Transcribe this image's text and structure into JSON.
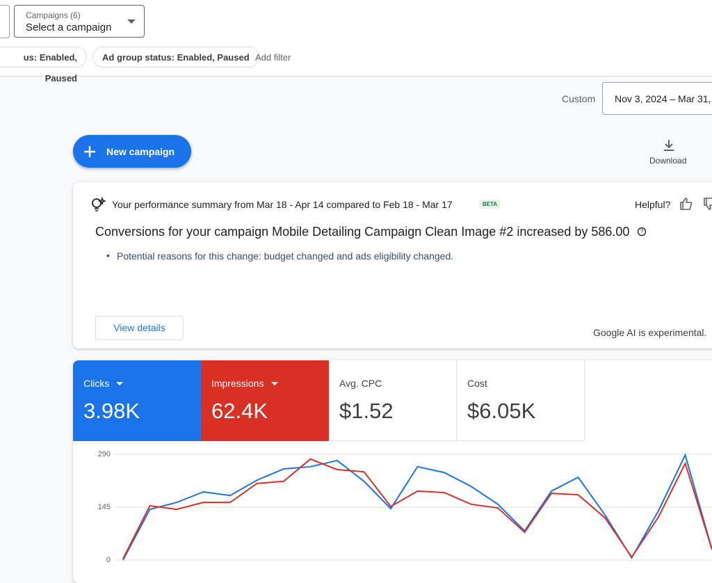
{
  "header": {
    "campaign_picker": {
      "label": "Campaigns (6)",
      "value": "Select a campaign"
    },
    "filters": [
      "us: Enabled, Paused",
      "Ad group status: Enabled, Paused"
    ],
    "add_filter": "Add filter",
    "date_mode": "Custom",
    "date_range": "Nov 3, 2024 – Mar 31,"
  },
  "toolbar": {
    "new_campaign": "New campaign",
    "download": "Download"
  },
  "summary": {
    "intro": "Your performance summary from Mar 18 - Apr 14 compared to Feb 18 - Mar 17",
    "badge": "BETA",
    "helpful": "Helpful?",
    "headline": "Conversions for your campaign Mobile Detailing Campaign Clean Image #2 increased by 586.00",
    "reason": "Potential reasons for this change: budget changed and ads eligibility changed.",
    "button": "View details",
    "disclaimer": "Google AI is experimental."
  },
  "metrics": [
    {
      "label": "Clicks",
      "value": "3.98K"
    },
    {
      "label": "Impressions",
      "value": "62.4K"
    },
    {
      "label": "Avg. CPC",
      "value": "$1.52"
    },
    {
      "label": "Cost",
      "value": "$6.05K"
    }
  ],
  "chart_data": {
    "type": "line",
    "categories": [
      null,
      null,
      null,
      null,
      null,
      null,
      null,
      null,
      null,
      null,
      null,
      null,
      null,
      null,
      null,
      null,
      null,
      null,
      null,
      null,
      null,
      null,
      null
    ],
    "series": [
      {
        "name": "Clicks",
        "color": "#1a73e8",
        "values": [
          0,
          139,
          158,
          187,
          177,
          219,
          250,
          256,
          273,
          216,
          141,
          256,
          240,
          202,
          153,
          80,
          189,
          227,
          124,
          6,
          135,
          288,
          29
        ]
      },
      {
        "name": "Impressions",
        "color": "#d93025",
        "values": [
          4,
          149,
          139,
          158,
          158,
          210,
          216,
          277,
          248,
          242,
          147,
          189,
          185,
          153,
          143,
          76,
          183,
          179,
          116,
          8,
          118,
          265,
          29
        ]
      }
    ],
    "ylim": [
      0,
      290
    ],
    "yticks": [
      0,
      145,
      290
    ],
    "grid": true
  }
}
